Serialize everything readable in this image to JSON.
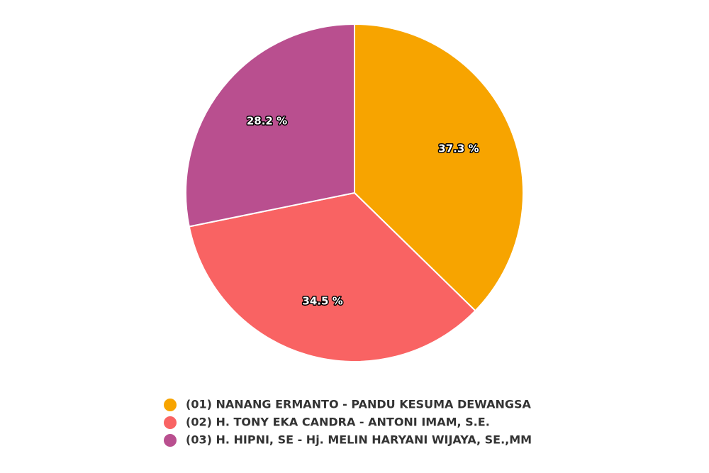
{
  "chart_data": {
    "type": "pie",
    "categories": [
      "(01) NANANG ERMANTO - PANDU KESUMA DEWANGSA",
      "(02) H. TONY EKA CANDRA - ANTONI IMAM, S.E.",
      "(03) H. HIPNI, SE - Hj. MELIN HARYANI WIJAYA, SE.,MM"
    ],
    "values": [
      37.3,
      34.5,
      28.2
    ],
    "value_labels": [
      "37.3 %",
      "34.5 %",
      "28.2 %"
    ],
    "colors": [
      "#f7a400",
      "#f96363",
      "#b94f8f"
    ]
  }
}
